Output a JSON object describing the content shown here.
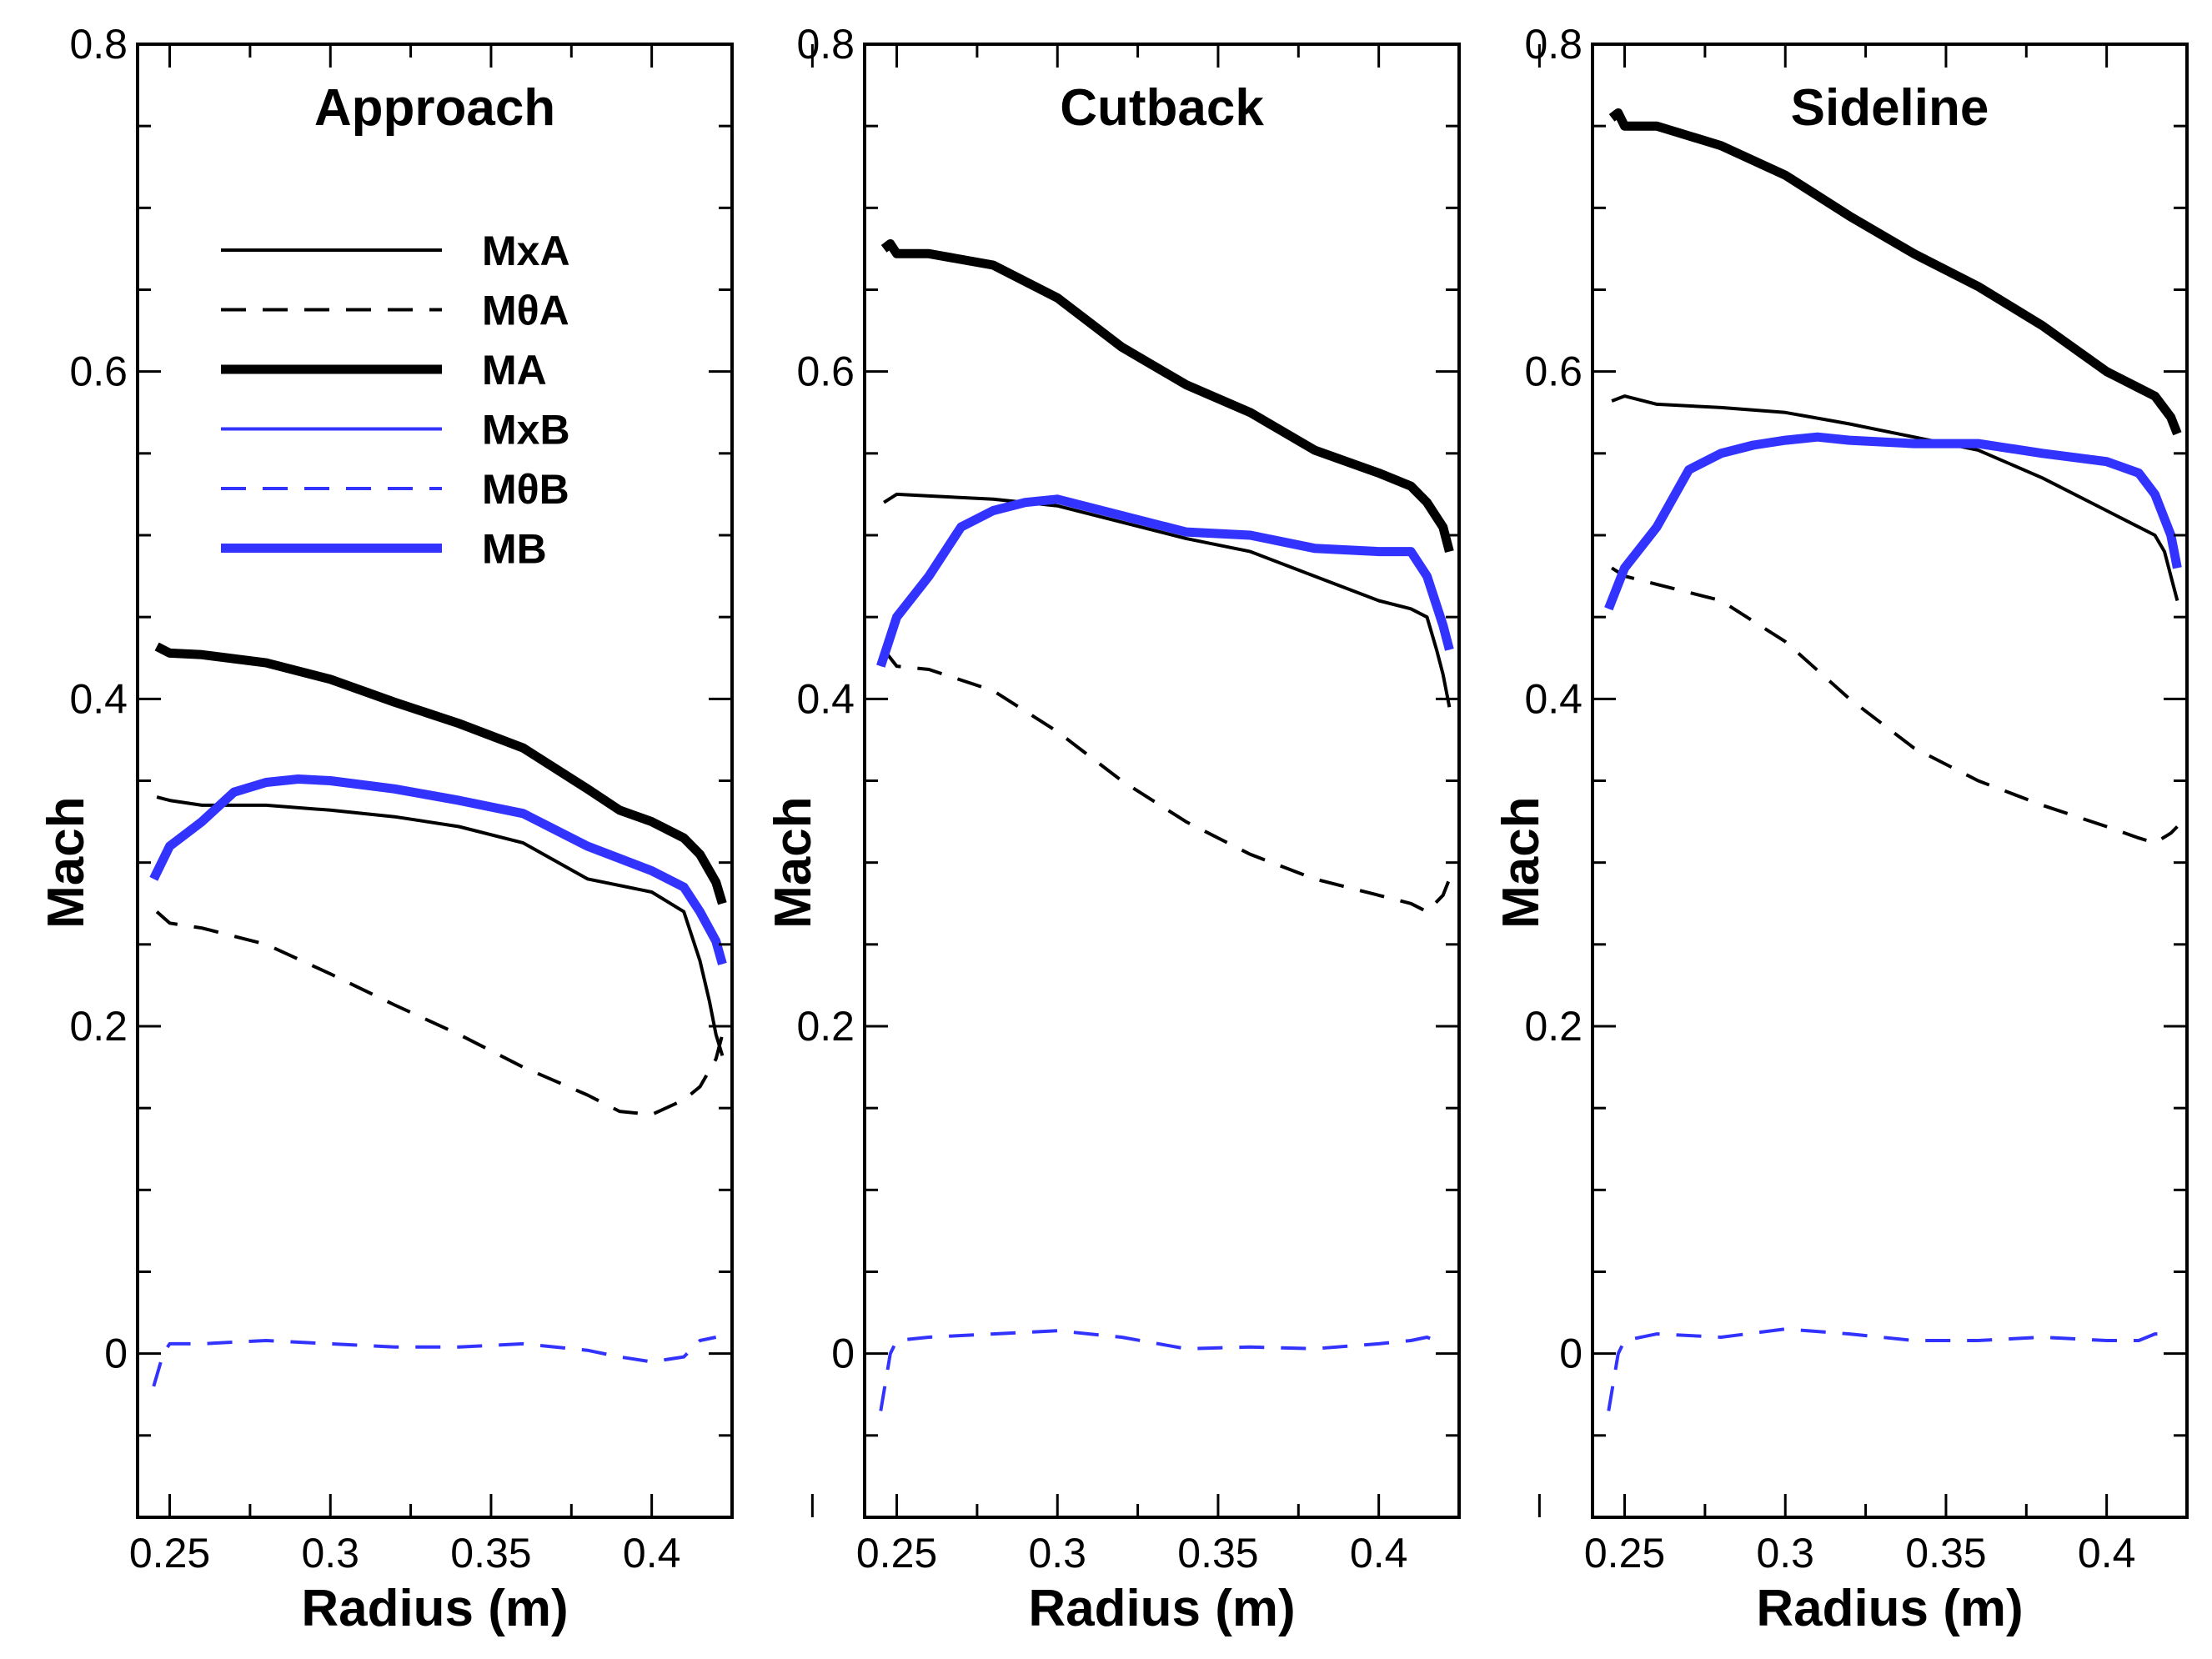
{
  "chart_data": [
    {
      "type": "line",
      "title": "Approach",
      "xlabel": "Radius (m)",
      "ylabel": "Mach",
      "xlim": [
        0.24,
        0.425
      ],
      "ylim": [
        -0.1,
        0.8
      ],
      "xticks": [
        0.25,
        0.3,
        0.35,
        0.4
      ],
      "xtick_labels": [
        "0.25",
        "0.3",
        "0.35",
        "0.4"
      ],
      "yticks": [
        0,
        0.2,
        0.4,
        0.6,
        0.8
      ],
      "ytick_labels": [
        "0",
        "0.2",
        "0.4",
        "0.6",
        "0.8"
      ],
      "legend_position": "top-left",
      "series": [
        {
          "name": "MxA",
          "color": "#000000",
          "style": "thin",
          "x": [
            0.246,
            0.25,
            0.26,
            0.28,
            0.3,
            0.32,
            0.34,
            0.36,
            0.38,
            0.4,
            0.41,
            0.415,
            0.418,
            0.42,
            0.422
          ],
          "y": [
            0.34,
            0.338,
            0.335,
            0.335,
            0.332,
            0.328,
            0.322,
            0.312,
            0.29,
            0.282,
            0.27,
            0.24,
            0.215,
            0.195,
            0.182
          ]
        },
        {
          "name": "MθA",
          "color": "#000000",
          "style": "dashed",
          "x": [
            0.246,
            0.25,
            0.26,
            0.28,
            0.3,
            0.32,
            0.34,
            0.36,
            0.38,
            0.39,
            0.4,
            0.41,
            0.415,
            0.42,
            0.422
          ],
          "y": [
            0.27,
            0.263,
            0.26,
            0.25,
            0.232,
            0.213,
            0.195,
            0.175,
            0.158,
            0.148,
            0.146,
            0.155,
            0.163,
            0.18,
            0.195
          ]
        },
        {
          "name": "MA",
          "color": "#000000",
          "style": "thick",
          "x": [
            0.246,
            0.25,
            0.26,
            0.28,
            0.3,
            0.32,
            0.34,
            0.36,
            0.38,
            0.39,
            0.4,
            0.41,
            0.415,
            0.42,
            0.422
          ],
          "y": [
            0.432,
            0.428,
            0.427,
            0.422,
            0.412,
            0.398,
            0.385,
            0.37,
            0.345,
            0.332,
            0.325,
            0.315,
            0.305,
            0.288,
            0.275
          ]
        },
        {
          "name": "MxB",
          "color": "#3333ff",
          "style": "thin",
          "x": [
            0.245,
            0.25,
            0.26,
            0.27,
            0.28,
            0.29,
            0.3,
            0.32,
            0.34,
            0.36,
            0.38,
            0.4,
            0.41,
            0.415,
            0.42,
            0.422
          ],
          "y": [
            0.29,
            0.31,
            0.325,
            0.343,
            0.349,
            0.351,
            0.35,
            0.345,
            0.338,
            0.33,
            0.31,
            0.295,
            0.285,
            0.27,
            0.252,
            0.238
          ]
        },
        {
          "name": "MθB",
          "color": "#3333ff",
          "style": "dashed",
          "x": [
            0.245,
            0.248,
            0.25,
            0.26,
            0.28,
            0.3,
            0.32,
            0.34,
            0.36,
            0.38,
            0.39,
            0.4,
            0.41,
            0.415,
            0.42
          ],
          "y": [
            -0.02,
            0.0,
            0.006,
            0.006,
            0.008,
            0.006,
            0.004,
            0.004,
            0.006,
            0.002,
            -0.002,
            -0.005,
            -0.002,
            0.008,
            0.01
          ]
        },
        {
          "name": "MB",
          "color": "#3333ff",
          "style": "thick",
          "x": [
            0.245,
            0.25,
            0.26,
            0.27,
            0.28,
            0.29,
            0.3,
            0.32,
            0.34,
            0.36,
            0.38,
            0.4,
            0.41,
            0.415,
            0.42,
            0.422
          ],
          "y": [
            0.29,
            0.31,
            0.325,
            0.343,
            0.349,
            0.351,
            0.35,
            0.345,
            0.338,
            0.33,
            0.31,
            0.295,
            0.285,
            0.27,
            0.252,
            0.238
          ]
        }
      ]
    },
    {
      "type": "line",
      "title": "Cutback",
      "xlabel": "Radius (m)",
      "ylabel": "Mach",
      "xlim": [
        0.24,
        0.425
      ],
      "ylim": [
        -0.1,
        0.8
      ],
      "xticks": [
        0.25,
        0.3,
        0.35,
        0.4
      ],
      "xtick_labels": [
        "0.25",
        "0.3",
        "0.35",
        "0.4"
      ],
      "yticks": [
        0,
        0.2,
        0.4,
        0.6,
        0.8
      ],
      "ytick_labels": [
        "0",
        "0.2",
        "0.4",
        "0.6",
        "0.8"
      ],
      "series": [
        {
          "name": "MxA",
          "color": "#000000",
          "style": "thin",
          "x": [
            0.246,
            0.25,
            0.26,
            0.28,
            0.3,
            0.32,
            0.34,
            0.36,
            0.38,
            0.4,
            0.41,
            0.415,
            0.418,
            0.42,
            0.422
          ],
          "y": [
            0.52,
            0.525,
            0.524,
            0.522,
            0.518,
            0.508,
            0.498,
            0.49,
            0.475,
            0.46,
            0.455,
            0.45,
            0.43,
            0.415,
            0.395
          ]
        },
        {
          "name": "MθA",
          "color": "#000000",
          "style": "dashed",
          "x": [
            0.246,
            0.25,
            0.26,
            0.28,
            0.3,
            0.32,
            0.34,
            0.36,
            0.38,
            0.4,
            0.41,
            0.415,
            0.42,
            0.422
          ],
          "y": [
            0.43,
            0.42,
            0.418,
            0.405,
            0.38,
            0.35,
            0.325,
            0.305,
            0.29,
            0.28,
            0.275,
            0.27,
            0.28,
            0.29
          ]
        },
        {
          "name": "MA",
          "color": "#000000",
          "style": "thick",
          "x": [
            0.246,
            0.248,
            0.25,
            0.26,
            0.28,
            0.3,
            0.32,
            0.34,
            0.36,
            0.38,
            0.4,
            0.41,
            0.415,
            0.42,
            0.422
          ],
          "y": [
            0.675,
            0.678,
            0.672,
            0.672,
            0.665,
            0.645,
            0.615,
            0.592,
            0.575,
            0.552,
            0.538,
            0.53,
            0.52,
            0.505,
            0.49
          ]
        },
        {
          "name": "MxB",
          "color": "#3333ff",
          "style": "thin",
          "x": [
            0.245,
            0.25,
            0.26,
            0.27,
            0.28,
            0.29,
            0.3,
            0.32,
            0.34,
            0.36,
            0.38,
            0.4,
            0.41,
            0.415,
            0.42,
            0.422
          ],
          "y": [
            0.42,
            0.45,
            0.475,
            0.505,
            0.515,
            0.52,
            0.522,
            0.512,
            0.502,
            0.5,
            0.492,
            0.49,
            0.49,
            0.475,
            0.445,
            0.43
          ]
        },
        {
          "name": "MθB",
          "color": "#3333ff",
          "style": "dashed",
          "x": [
            0.245,
            0.248,
            0.25,
            0.26,
            0.28,
            0.3,
            0.32,
            0.34,
            0.36,
            0.38,
            0.4,
            0.41,
            0.415,
            0.42
          ],
          "y": [
            -0.035,
            0.0,
            0.008,
            0.01,
            0.012,
            0.014,
            0.01,
            0.003,
            0.004,
            0.003,
            0.006,
            0.008,
            0.01,
            0.006
          ]
        },
        {
          "name": "MB",
          "color": "#3333ff",
          "style": "thick",
          "x": [
            0.245,
            0.25,
            0.26,
            0.27,
            0.28,
            0.29,
            0.3,
            0.32,
            0.34,
            0.36,
            0.38,
            0.4,
            0.41,
            0.415,
            0.42,
            0.422
          ],
          "y": [
            0.42,
            0.45,
            0.475,
            0.505,
            0.515,
            0.52,
            0.522,
            0.512,
            0.502,
            0.5,
            0.492,
            0.49,
            0.49,
            0.475,
            0.445,
            0.43
          ]
        }
      ]
    },
    {
      "type": "line",
      "title": "Sideline",
      "xlabel": "Radius (m)",
      "ylabel": "Mach",
      "xlim": [
        0.24,
        0.425
      ],
      "ylim": [
        -0.1,
        0.8
      ],
      "xticks": [
        0.25,
        0.3,
        0.35,
        0.4
      ],
      "xtick_labels": [
        "0.25",
        "0.3",
        "0.35",
        "0.4"
      ],
      "yticks": [
        0,
        0.2,
        0.4,
        0.6,
        0.8
      ],
      "ytick_labels": [
        "0",
        "0.2",
        "0.4",
        "0.6",
        "0.8"
      ],
      "series": [
        {
          "name": "MxA",
          "color": "#000000",
          "style": "thin",
          "x": [
            0.246,
            0.25,
            0.26,
            0.28,
            0.3,
            0.32,
            0.34,
            0.36,
            0.38,
            0.4,
            0.41,
            0.415,
            0.418,
            0.42,
            0.422
          ],
          "y": [
            0.582,
            0.585,
            0.58,
            0.578,
            0.575,
            0.568,
            0.56,
            0.552,
            0.535,
            0.515,
            0.505,
            0.5,
            0.49,
            0.475,
            0.46
          ]
        },
        {
          "name": "MθA",
          "color": "#000000",
          "style": "dashed",
          "x": [
            0.246,
            0.25,
            0.26,
            0.28,
            0.3,
            0.32,
            0.34,
            0.36,
            0.38,
            0.4,
            0.41,
            0.415,
            0.42,
            0.422
          ],
          "y": [
            0.48,
            0.475,
            0.47,
            0.46,
            0.435,
            0.4,
            0.37,
            0.35,
            0.335,
            0.322,
            0.315,
            0.312,
            0.318,
            0.322
          ]
        },
        {
          "name": "MA",
          "color": "#000000",
          "style": "thick",
          "x": [
            0.246,
            0.248,
            0.25,
            0.26,
            0.28,
            0.3,
            0.32,
            0.34,
            0.36,
            0.38,
            0.4,
            0.41,
            0.415,
            0.42,
            0.422
          ],
          "y": [
            0.755,
            0.758,
            0.75,
            0.75,
            0.738,
            0.72,
            0.695,
            0.672,
            0.652,
            0.628,
            0.6,
            0.59,
            0.585,
            0.572,
            0.562
          ]
        },
        {
          "name": "MxB",
          "color": "#3333ff",
          "style": "thin",
          "x": [
            0.245,
            0.25,
            0.26,
            0.27,
            0.28,
            0.29,
            0.3,
            0.31,
            0.32,
            0.34,
            0.36,
            0.38,
            0.4,
            0.41,
            0.415,
            0.42,
            0.422
          ],
          "y": [
            0.455,
            0.48,
            0.505,
            0.54,
            0.55,
            0.555,
            0.558,
            0.56,
            0.558,
            0.556,
            0.556,
            0.55,
            0.545,
            0.538,
            0.525,
            0.5,
            0.48
          ]
        },
        {
          "name": "MθB",
          "color": "#3333ff",
          "style": "dashed",
          "x": [
            0.245,
            0.248,
            0.25,
            0.26,
            0.28,
            0.3,
            0.32,
            0.34,
            0.36,
            0.38,
            0.4,
            0.41,
            0.415,
            0.42
          ],
          "y": [
            -0.035,
            0.0,
            0.008,
            0.012,
            0.01,
            0.015,
            0.012,
            0.008,
            0.008,
            0.01,
            0.008,
            0.008,
            0.012,
            0.012
          ]
        },
        {
          "name": "MB",
          "color": "#3333ff",
          "style": "thick",
          "x": [
            0.245,
            0.25,
            0.26,
            0.27,
            0.28,
            0.29,
            0.3,
            0.31,
            0.32,
            0.34,
            0.36,
            0.38,
            0.4,
            0.41,
            0.415,
            0.42,
            0.422
          ],
          "y": [
            0.455,
            0.48,
            0.505,
            0.54,
            0.55,
            0.555,
            0.558,
            0.56,
            0.558,
            0.556,
            0.556,
            0.55,
            0.545,
            0.538,
            0.525,
            0.5,
            0.48
          ]
        }
      ]
    }
  ]
}
